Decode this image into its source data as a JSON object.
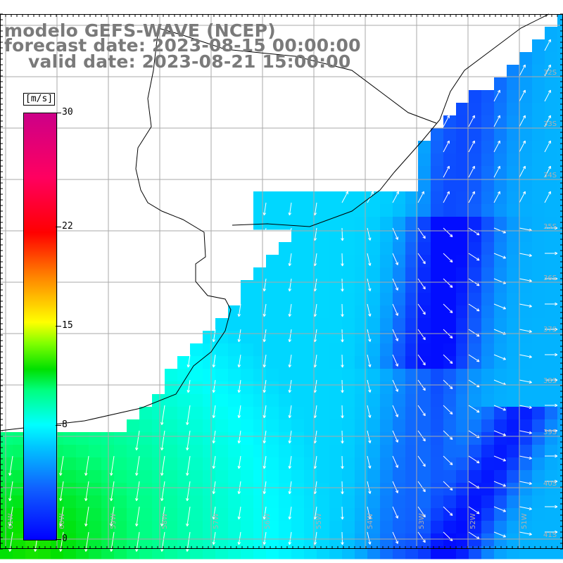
{
  "title": {
    "line1": "modelo GEFS-WAVE (NCEP)",
    "line2": "forecast date: 2023-08-15 00:00:00",
    "line3": "valid date: 2023-08-21 15:00:00"
  },
  "colorbar": {
    "unit": "[m/s]",
    "ticks": [
      "30",
      "22",
      "15",
      "8",
      "0"
    ],
    "tick_values": [
      30,
      22,
      15,
      8,
      0
    ],
    "min": 0,
    "max": 30
  },
  "axes": {
    "lon_labels": [
      "61W",
      "60W",
      "59W",
      "58W",
      "57W",
      "56W",
      "55W",
      "54W",
      "53W",
      "52W",
      "51W"
    ],
    "lat_labels": [
      "32S",
      "33S",
      "34S",
      "35S",
      "36S",
      "37S",
      "38S",
      "39S",
      "40S",
      "41S"
    ],
    "lon_range": [
      -61.5,
      -50.5
    ],
    "lat_range": [
      -31.5,
      -42.0
    ]
  },
  "colors": {
    "background": "#ffffff",
    "land": "#ffffff",
    "grid": "#aaaaaa",
    "coastline": "#000000",
    "title_text": "#7a7a7a",
    "arrows": "#ffffff"
  }
}
